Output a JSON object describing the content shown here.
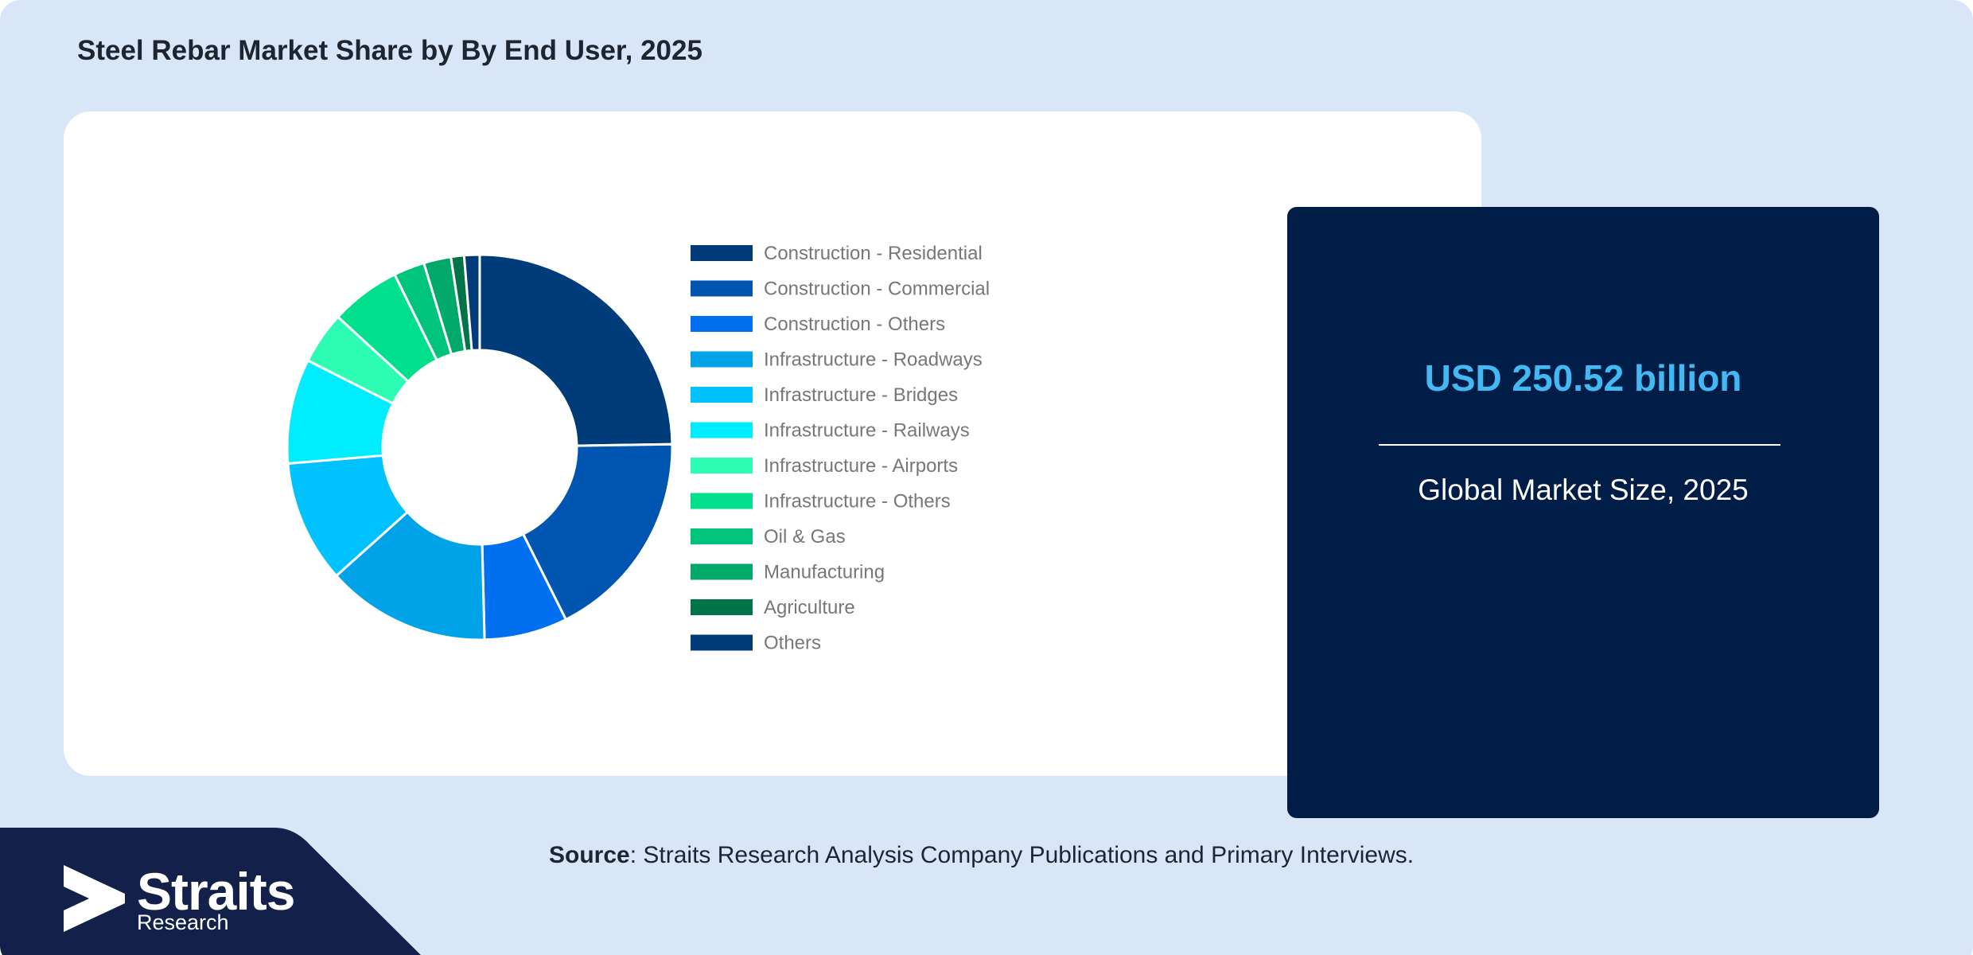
{
  "header": {
    "title": "Steel Rebar Market Share by By End User, 2025"
  },
  "chart_data": {
    "type": "pie",
    "donut": true,
    "title": "Steel Rebar Market Share by By End User, 2025",
    "legend_position": "right",
    "categories": [
      "Construction - Residential",
      "Construction - Commercial",
      "Construction - Others",
      "Infrastructure - Roadways",
      "Infrastructure - Bridges",
      "Infrastructure - Railways",
      "Infrastructure - Airports",
      "Infrastructure - Others",
      "Oil & Gas",
      "Manufacturing",
      "Agriculture",
      "Others"
    ],
    "values": [
      24.8,
      17.9,
      7.0,
      13.8,
      10.3,
      8.8,
      4.4,
      5.9,
      2.6,
      2.3,
      1.1,
      1.3
    ],
    "colors": [
      "#003b7a",
      "#0055b0",
      "#006ff0",
      "#00a3e8",
      "#00c2ff",
      "#00ecff",
      "#2dfcb4",
      "#00e08c",
      "#00c47c",
      "#00a86a",
      "#007348",
      "#003b7a"
    ]
  },
  "market_panel": {
    "value": "USD 250.52 billion",
    "label": "Global Market Size, 2025"
  },
  "source": {
    "label": "Source",
    "text": ": Straits Research Analysis Company Publications and Primary Interviews."
  },
  "logo": {
    "name": "Straits",
    "sub": "Research"
  },
  "colors": {
    "background": "#d9e6f8",
    "panel": "#001d47",
    "accent": "#43b9f3",
    "logo_band": "#13204a"
  }
}
